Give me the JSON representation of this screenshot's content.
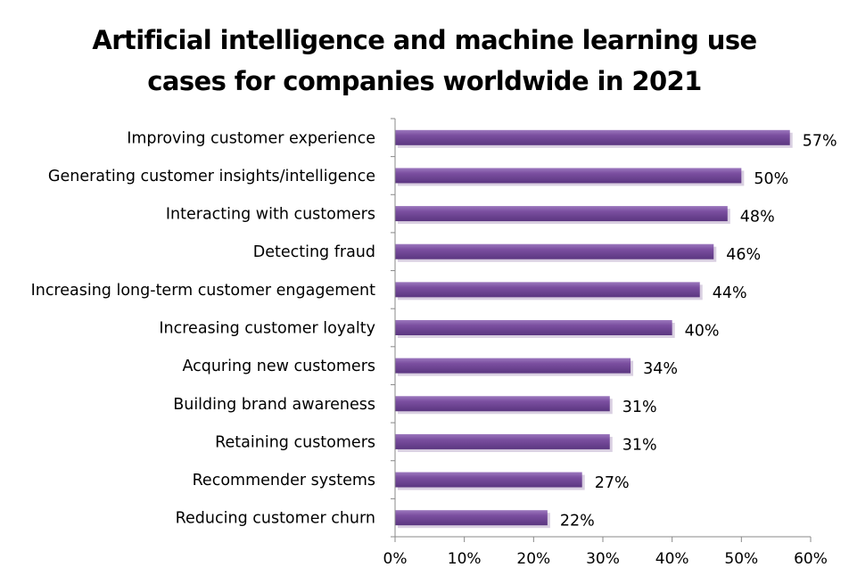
{
  "chart_data": {
    "type": "bar",
    "orientation": "horizontal",
    "title": "Artificial intelligence and machine learning use cases for companies worldwide in 2021",
    "xlabel": "",
    "ylabel": "",
    "categories": [
      "Improving customer experience",
      "Generating customer insights/intelligence",
      "Interacting with customers",
      "Detecting fraud",
      "Increasing long-term customer engagement",
      "Increasing customer loyalty",
      "Acquring new customers",
      "Building brand awareness",
      "Retaining customers",
      "Recommender systems",
      "Reducing customer churn"
    ],
    "values": [
      57,
      50,
      48,
      46,
      44,
      40,
      34,
      31,
      31,
      27,
      22
    ],
    "data_labels": [
      "57%",
      "50%",
      "48%",
      "46%",
      "44%",
      "40%",
      "34%",
      "31%",
      "31%",
      "27%",
      "22%"
    ],
    "xlim": [
      0,
      60
    ],
    "x_ticks": [
      0,
      10,
      20,
      30,
      40,
      50,
      60
    ],
    "x_tick_labels": [
      "0%",
      "10%",
      "20%",
      "30%",
      "40%",
      "50%",
      "60%"
    ],
    "grid": false,
    "legend": "none",
    "bar_color": "#7B4FA0",
    "bar_shadow_color": "#B9A8C9",
    "axis_color": "#888888"
  }
}
